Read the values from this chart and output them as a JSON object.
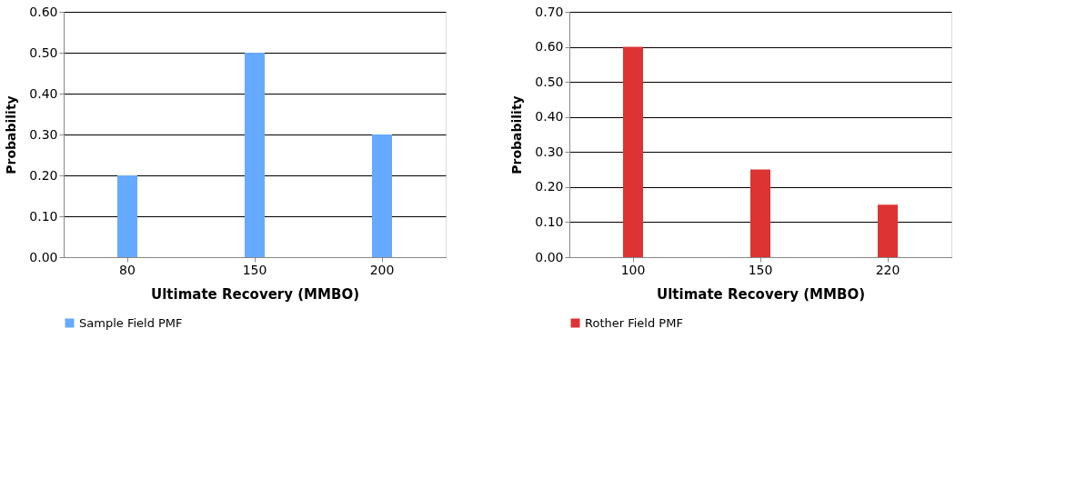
{
  "chart_data": [
    {
      "type": "bar",
      "xlabel": "Ultimate Recovery (MMBO)",
      "ylabel": "Probability",
      "categories": [
        "80",
        "150",
        "200"
      ],
      "series": [
        {
          "name": "Sample Field PMF",
          "color": "#66aaff",
          "values": [
            0.2,
            0.5,
            0.3
          ]
        }
      ],
      "ylim": [
        0,
        0.6
      ],
      "yticks": [
        {
          "value": 0,
          "label": "0.00"
        },
        {
          "value": 0.1,
          "label": "0.10"
        },
        {
          "value": 0.2,
          "label": "0.20"
        },
        {
          "value": 0.3,
          "label": "0.30"
        },
        {
          "value": 0.4,
          "label": "0.40"
        },
        {
          "value": 0.5,
          "label": "0.50"
        },
        {
          "value": 0.6,
          "label": "0.60"
        }
      ],
      "grid": "y",
      "legend": "bottom"
    },
    {
      "type": "bar",
      "xlabel": "Ultimate Recovery (MMBO)",
      "ylabel": "Probability",
      "categories": [
        "100",
        "150",
        "220"
      ],
      "series": [
        {
          "name": "Rother Field PMF",
          "color": "#dd3333",
          "values": [
            0.6,
            0.25,
            0.15
          ]
        }
      ],
      "ylim": [
        0,
        0.7
      ],
      "yticks": [
        {
          "value": 0,
          "label": "0.00"
        },
        {
          "value": 0.1,
          "label": "0.10"
        },
        {
          "value": 0.2,
          "label": "0.20"
        },
        {
          "value": 0.3,
          "label": "0.30"
        },
        {
          "value": 0.4,
          "label": "0.40"
        },
        {
          "value": 0.5,
          "label": "0.50"
        },
        {
          "value": 0.6,
          "label": "0.60"
        },
        {
          "value": 0.7,
          "label": "0.70"
        }
      ],
      "grid": "y",
      "legend": "bottom"
    }
  ]
}
